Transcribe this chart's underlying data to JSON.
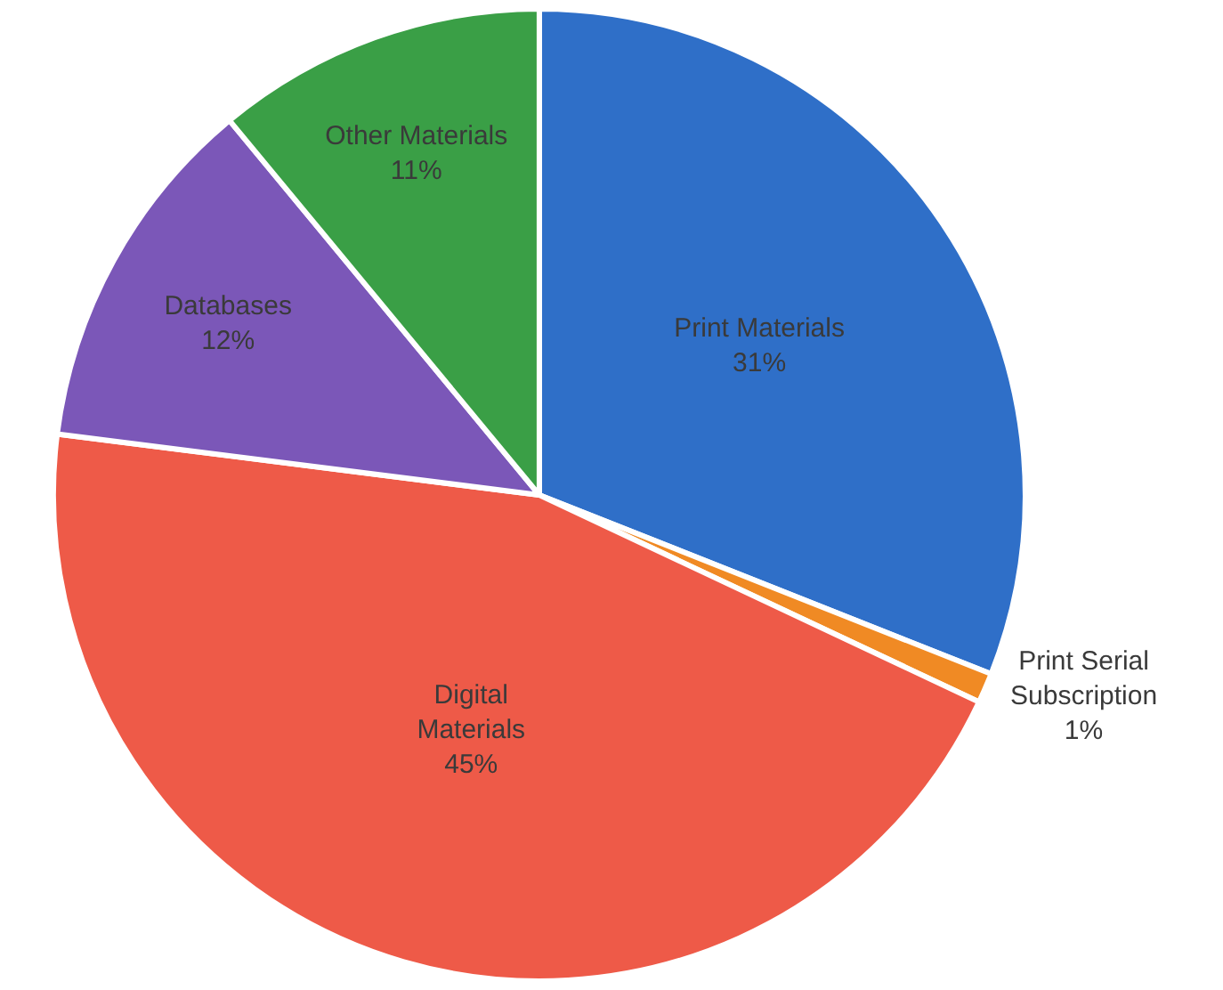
{
  "chart_data": {
    "type": "pie",
    "categories": [
      "Print Materials",
      "Print Serial Subscription",
      "Digital Materials",
      "Databases",
      "Other Materials"
    ],
    "values": [
      31,
      1,
      45,
      12,
      11
    ],
    "value_labels": [
      "31%",
      "1%",
      "45%",
      "12%",
      "11%"
    ],
    "colors": [
      "#2f6fc8",
      "#f08a24",
      "#ee5a48",
      "#7b57b8",
      "#3a9f46"
    ],
    "legend": false
  }
}
